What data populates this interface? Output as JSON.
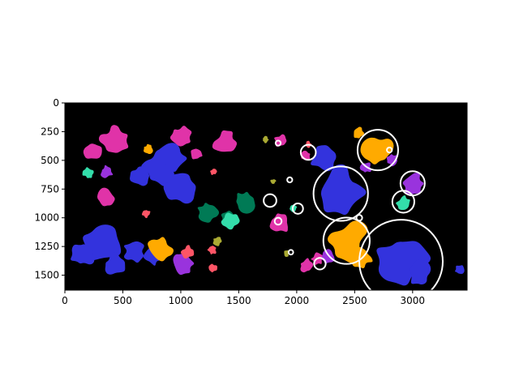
{
  "chart_data": {
    "type": "image",
    "title": "",
    "xlabel": "",
    "ylabel": "",
    "xlim": [
      0,
      3470
    ],
    "ylim": [
      1630,
      0
    ],
    "y_axis_inverted": true,
    "x_ticks": [
      0,
      500,
      1000,
      1500,
      2000,
      2500,
      3000
    ],
    "y_ticks": [
      0,
      250,
      500,
      750,
      1000,
      1250,
      1500
    ],
    "x_tick_labels": [
      "0",
      "500",
      "1000",
      "1500",
      "2000",
      "2500",
      "3000"
    ],
    "y_tick_labels": [
      "0",
      "250",
      "500",
      "750",
      "1000",
      "1250",
      "1500"
    ],
    "background_color": "#000000",
    "circle_color": "#ffffff",
    "palette": {
      "blue": "#3333dd",
      "magenta": "#e033a8",
      "orange": "#ffaa00",
      "green": "#007a55",
      "mint": "#33ddaa",
      "purple": "#9933dd",
      "coral": "#ff5566",
      "olive": "#aaaa33"
    },
    "blobs": [
      {
        "color": "blue",
        "x": 310,
        "y": 1240,
        "r": 180
      },
      {
        "color": "blue",
        "x": 150,
        "y": 1320,
        "r": 120
      },
      {
        "color": "blue",
        "x": 420,
        "y": 1420,
        "r": 110
      },
      {
        "color": "blue",
        "x": 600,
        "y": 1290,
        "r": 100
      },
      {
        "color": "blue",
        "x": 760,
        "y": 1340,
        "r": 80
      },
      {
        "color": "blue",
        "x": 820,
        "y": 560,
        "r": 170
      },
      {
        "color": "blue",
        "x": 1000,
        "y": 720,
        "r": 160
      },
      {
        "color": "blue",
        "x": 920,
        "y": 480,
        "r": 130
      },
      {
        "color": "blue",
        "x": 650,
        "y": 630,
        "r": 100
      },
      {
        "color": "blue",
        "x": 2380,
        "y": 780,
        "r": 220
      },
      {
        "color": "blue",
        "x": 2240,
        "y": 480,
        "r": 130
      },
      {
        "color": "blue",
        "x": 2900,
        "y": 1370,
        "r": 260
      },
      {
        "color": "blue",
        "x": 3060,
        "y": 1480,
        "r": 120
      },
      {
        "color": "blue",
        "x": 3400,
        "y": 1450,
        "r": 45
      },
      {
        "color": "magenta",
        "x": 430,
        "y": 330,
        "r": 130
      },
      {
        "color": "magenta",
        "x": 240,
        "y": 420,
        "r": 80
      },
      {
        "color": "magenta",
        "x": 1000,
        "y": 300,
        "r": 100
      },
      {
        "color": "magenta",
        "x": 1380,
        "y": 340,
        "r": 110
      },
      {
        "color": "magenta",
        "x": 1140,
        "y": 440,
        "r": 60
      },
      {
        "color": "magenta",
        "x": 350,
        "y": 830,
        "r": 90
      },
      {
        "color": "magenta",
        "x": 1850,
        "y": 1040,
        "r": 100
      },
      {
        "color": "magenta",
        "x": 1860,
        "y": 330,
        "r": 60
      },
      {
        "color": "magenta",
        "x": 2080,
        "y": 460,
        "r": 50
      },
      {
        "color": "magenta",
        "x": 2080,
        "y": 1420,
        "r": 70
      },
      {
        "color": "magenta",
        "x": 2180,
        "y": 1360,
        "r": 60
      },
      {
        "color": "orange",
        "x": 2700,
        "y": 420,
        "r": 150
      },
      {
        "color": "orange",
        "x": 2440,
        "y": 1200,
        "r": 190
      },
      {
        "color": "orange",
        "x": 2560,
        "y": 1340,
        "r": 100
      },
      {
        "color": "orange",
        "x": 820,
        "y": 1270,
        "r": 110
      },
      {
        "color": "orange",
        "x": 720,
        "y": 400,
        "r": 45
      },
      {
        "color": "orange",
        "x": 2530,
        "y": 260,
        "r": 50
      },
      {
        "color": "green",
        "x": 1550,
        "y": 860,
        "r": 110
      },
      {
        "color": "green",
        "x": 1230,
        "y": 950,
        "r": 100
      },
      {
        "color": "green",
        "x": 1400,
        "y": 1000,
        "r": 70
      },
      {
        "color": "mint",
        "x": 1430,
        "y": 1030,
        "r": 80
      },
      {
        "color": "mint",
        "x": 2920,
        "y": 870,
        "r": 70
      },
      {
        "color": "mint",
        "x": 200,
        "y": 610,
        "r": 50
      },
      {
        "color": "mint",
        "x": 1970,
        "y": 920,
        "r": 35
      },
      {
        "color": "purple",
        "x": 3000,
        "y": 700,
        "r": 110
      },
      {
        "color": "purple",
        "x": 2830,
        "y": 500,
        "r": 60
      },
      {
        "color": "purple",
        "x": 1020,
        "y": 1400,
        "r": 110
      },
      {
        "color": "purple",
        "x": 360,
        "y": 600,
        "r": 60
      },
      {
        "color": "purple",
        "x": 2260,
        "y": 1340,
        "r": 70
      },
      {
        "color": "purple",
        "x": 2600,
        "y": 560,
        "r": 50
      },
      {
        "color": "coral",
        "x": 1060,
        "y": 1300,
        "r": 60
      },
      {
        "color": "coral",
        "x": 1270,
        "y": 1280,
        "r": 45
      },
      {
        "color": "coral",
        "x": 1280,
        "y": 1440,
        "r": 40
      },
      {
        "color": "coral",
        "x": 1280,
        "y": 600,
        "r": 30
      },
      {
        "color": "coral",
        "x": 700,
        "y": 960,
        "r": 40
      },
      {
        "color": "coral",
        "x": 2100,
        "y": 360,
        "r": 30
      },
      {
        "color": "olive",
        "x": 1320,
        "y": 1200,
        "r": 45
      },
      {
        "color": "olive",
        "x": 1730,
        "y": 320,
        "r": 30
      },
      {
        "color": "olive",
        "x": 1910,
        "y": 1310,
        "r": 30
      },
      {
        "color": "olive",
        "x": 1800,
        "y": 680,
        "r": 25
      }
    ],
    "circles": [
      {
        "x": 2700,
        "y": 410,
        "r": 175
      },
      {
        "x": 2380,
        "y": 790,
        "r": 235
      },
      {
        "x": 2430,
        "y": 1200,
        "r": 200
      },
      {
        "x": 2900,
        "y": 1380,
        "r": 360
      },
      {
        "x": 3000,
        "y": 700,
        "r": 105
      },
      {
        "x": 2920,
        "y": 860,
        "r": 95
      },
      {
        "x": 2100,
        "y": 430,
        "r": 65
      },
      {
        "x": 1770,
        "y": 850,
        "r": 55
      },
      {
        "x": 2010,
        "y": 920,
        "r": 45
      },
      {
        "x": 2200,
        "y": 1400,
        "r": 50
      },
      {
        "x": 1840,
        "y": 1030,
        "r": 30
      },
      {
        "x": 1840,
        "y": 350,
        "r": 22
      },
      {
        "x": 1940,
        "y": 670,
        "r": 22
      },
      {
        "x": 1950,
        "y": 1300,
        "r": 20
      },
      {
        "x": 2800,
        "y": 410,
        "r": 22
      },
      {
        "x": 2540,
        "y": 1000,
        "r": 25
      }
    ]
  }
}
